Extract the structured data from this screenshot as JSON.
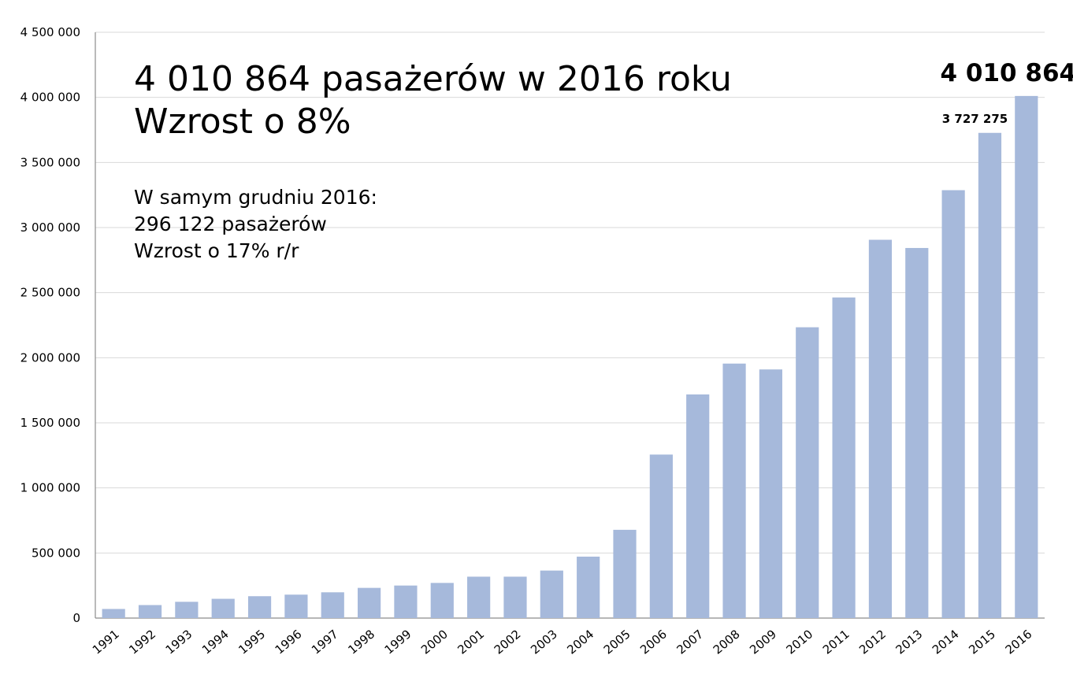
{
  "chart_data": {
    "type": "bar",
    "categories": [
      "1991",
      "1992",
      "1993",
      "1994",
      "1995",
      "1996",
      "1997",
      "1998",
      "1999",
      "2000",
      "2001",
      "2002",
      "2003",
      "2004",
      "2005",
      "2006",
      "2007",
      "2008",
      "2009",
      "2010",
      "2011",
      "2012",
      "2013",
      "2014",
      "2015",
      "2016"
    ],
    "values": [
      70000,
      100000,
      125000,
      148000,
      168000,
      180000,
      198000,
      232000,
      250000,
      270000,
      318000,
      318000,
      365000,
      472000,
      678000,
      1256000,
      1718000,
      1955000,
      1910000,
      2234000,
      2463000,
      2906000,
      2843000,
      3287000,
      3727275,
      4010864
    ],
    "ylim": [
      0,
      4500000
    ],
    "yticks": [
      0,
      500000,
      1000000,
      1500000,
      2000000,
      2500000,
      3000000,
      3500000,
      4000000,
      4500000
    ],
    "ytick_labels": [
      "0",
      "500 000",
      "1 000 000",
      "1 500 000",
      "2 000 000",
      "2 500 000",
      "3 000 000",
      "3 500 000",
      "4 000 000",
      "4 500 000"
    ],
    "grid": true,
    "bar_color": "#a6b9db",
    "data_labels": [
      {
        "category": "2015",
        "text": "3 727 275"
      },
      {
        "category": "2016",
        "text": "4 010 864"
      }
    ],
    "xlabel": "",
    "ylabel": ""
  },
  "annotations": {
    "headline_line1": "4 010 864 pasażerów w 2016 roku",
    "headline_line2": "Wzrost o 8%",
    "note_line1": "W samym grudniu 2016:",
    "note_line2": "296 122 pasażerów",
    "note_line3": "Wzrost o 17% r/r"
  }
}
